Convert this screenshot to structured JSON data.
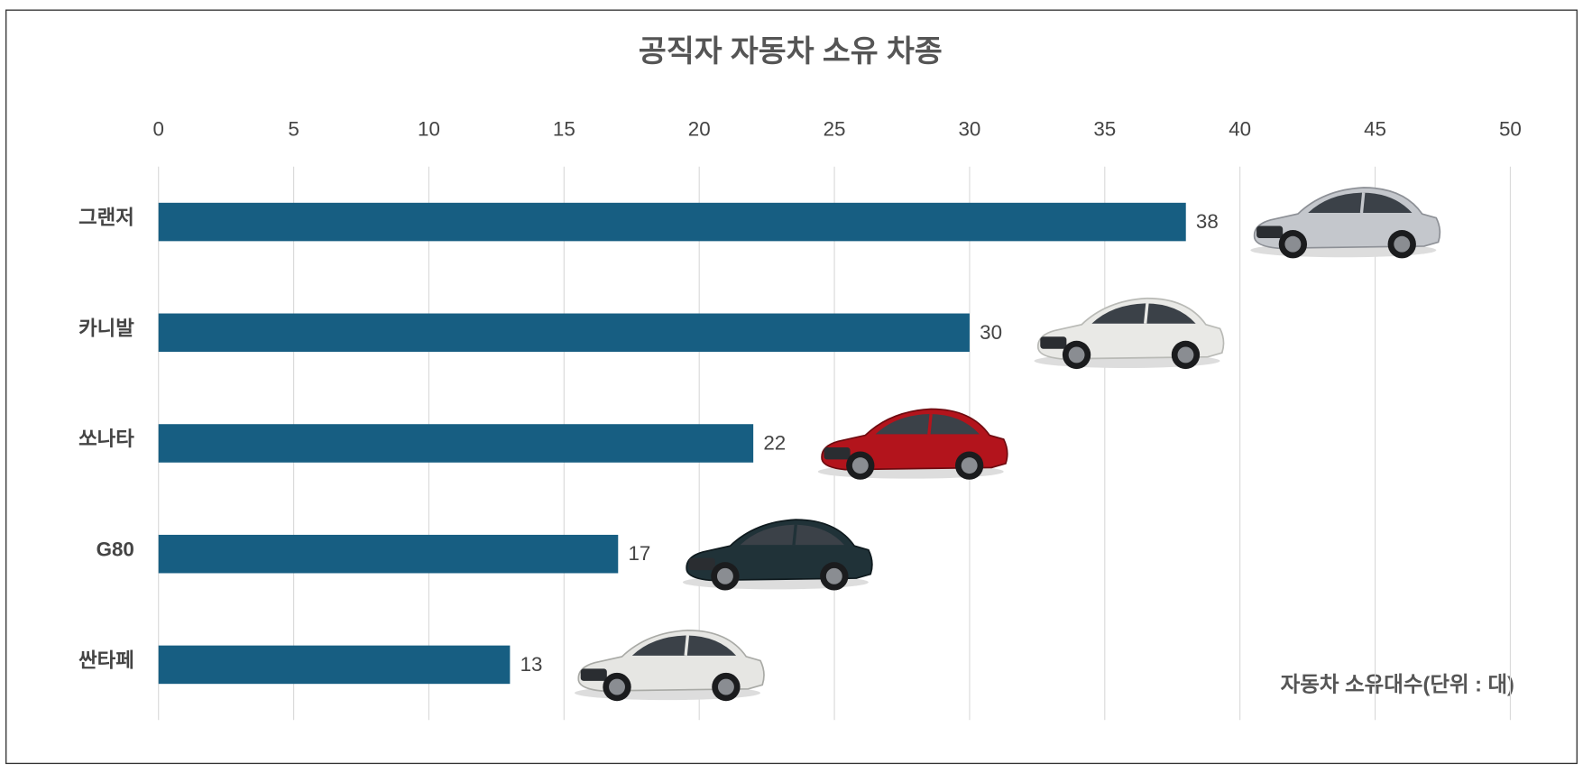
{
  "chart_data": {
    "type": "bar",
    "orientation": "horizontal",
    "title": "공직자 자동차 소유 차종",
    "categories": [
      "그랜저",
      "카니발",
      "쏘나타",
      "G80",
      "싼타페"
    ],
    "values": [
      38,
      30,
      22,
      17,
      13
    ],
    "color": "#175e82",
    "xlim": [
      0,
      50
    ],
    "xticks": [
      0,
      5,
      10,
      15,
      20,
      25,
      30,
      35,
      40,
      45,
      50
    ],
    "grid": true,
    "annotation": "자동차 소유대수(단위 : 대)"
  }
}
